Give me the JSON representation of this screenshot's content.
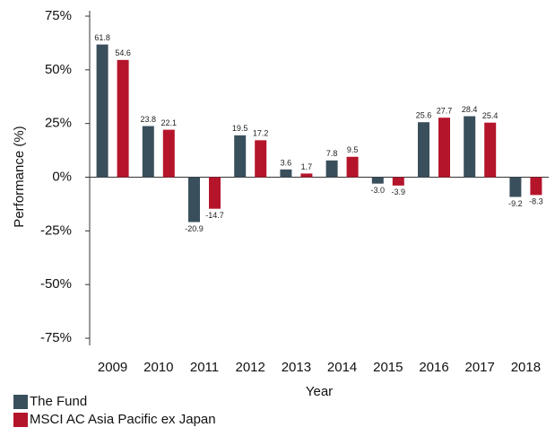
{
  "chart_data": {
    "type": "bar",
    "x_label": "Year",
    "y_label": "Performance (%)",
    "categories": [
      "2009",
      "2010",
      "2011",
      "2012",
      "2013",
      "2014",
      "2015",
      "2016",
      "2017",
      "2018"
    ],
    "series": [
      {
        "name": "The Fund",
        "color": "#3a4f5c",
        "values": [
          61.8,
          23.8,
          -20.9,
          19.5,
          3.6,
          7.8,
          -3.0,
          25.6,
          28.4,
          -9.2
        ],
        "value_labels": [
          "61.8",
          "23.8",
          "-20.9",
          "19.5",
          "3.6",
          "7.8",
          "-3.0",
          "25.6",
          "28.4",
          "-9.2"
        ]
      },
      {
        "name": "MSCI AC Asia Pacific ex Japan",
        "color": "#b5152b",
        "values": [
          54.6,
          22.1,
          -14.7,
          17.2,
          1.7,
          9.5,
          -3.9,
          27.7,
          25.4,
          -8.3
        ],
        "value_labels": [
          "54.6",
          "22.1",
          "-14.7",
          "17.2",
          "1.7",
          "9.5",
          "-3.9",
          "27.7",
          "25.4",
          "-8.3"
        ]
      }
    ],
    "ylim": [
      -75,
      75
    ],
    "yticks": [
      {
        "value": -75,
        "label": "-75%"
      },
      {
        "value": -50,
        "label": "-50%"
      },
      {
        "value": -25,
        "label": "-25%"
      },
      {
        "value": 0,
        "label": "0%"
      },
      {
        "value": 25,
        "label": "25%"
      },
      {
        "value": 50,
        "label": "50%"
      },
      {
        "value": 75,
        "label": "75%"
      }
    ],
    "grid": false,
    "legend": "bottom-left"
  }
}
